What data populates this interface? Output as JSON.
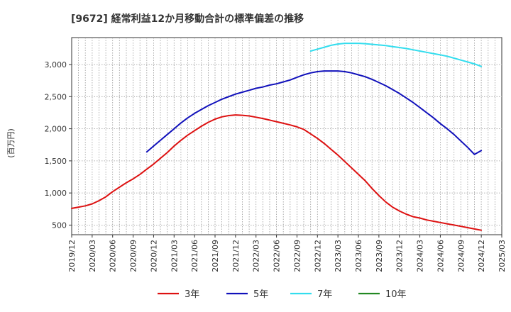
{
  "chart_data": {
    "type": "line",
    "title": "[9672]  経常利益12か月移動合計の標準偏差の推移",
    "ylabel": "(百万円)",
    "ylim": [
      350,
      3420
    ],
    "yticks": [
      500,
      1000,
      1500,
      2000,
      2500,
      3000
    ],
    "ytick_labels": [
      "500",
      "1,000",
      "1,500",
      "2,000",
      "2,500",
      "3,000"
    ],
    "xlim": [
      "2019/12",
      "2025/03"
    ],
    "xticks": [
      "2019/12",
      "2020/03",
      "2020/06",
      "2020/09",
      "2020/12",
      "2021/03",
      "2021/06",
      "2021/09",
      "2021/12",
      "2022/03",
      "2022/06",
      "2022/09",
      "2022/12",
      "2023/03",
      "2023/06",
      "2023/09",
      "2023/12",
      "2024/03",
      "2024/06",
      "2024/09",
      "2024/12",
      "2025/03"
    ],
    "grid": true,
    "legend_position": "bottom",
    "series": [
      {
        "name": "3年",
        "color": "#dd1111",
        "x": [
          "2019/12",
          "2020/01",
          "2020/02",
          "2020/03",
          "2020/04",
          "2020/05",
          "2020/06",
          "2020/07",
          "2020/08",
          "2020/09",
          "2020/10",
          "2020/11",
          "2020/12",
          "2021/01",
          "2021/02",
          "2021/03",
          "2021/04",
          "2021/05",
          "2021/06",
          "2021/07",
          "2021/08",
          "2021/09",
          "2021/10",
          "2021/11",
          "2021/12",
          "2022/01",
          "2022/02",
          "2022/03",
          "2022/04",
          "2022/05",
          "2022/06",
          "2022/07",
          "2022/08",
          "2022/09",
          "2022/10",
          "2022/11",
          "2022/12",
          "2023/01",
          "2023/02",
          "2023/03",
          "2023/04",
          "2023/05",
          "2023/06",
          "2023/07",
          "2023/08",
          "2023/09",
          "2023/10",
          "2023/11",
          "2023/12",
          "2024/01",
          "2024/02",
          "2024/03",
          "2024/04",
          "2024/05",
          "2024/06",
          "2024/07",
          "2024/08",
          "2024/09",
          "2024/10",
          "2024/11",
          "2024/12"
        ],
        "values": [
          760,
          780,
          800,
          830,
          880,
          940,
          1020,
          1090,
          1160,
          1220,
          1290,
          1370,
          1450,
          1540,
          1630,
          1730,
          1820,
          1900,
          1970,
          2040,
          2100,
          2150,
          2185,
          2205,
          2215,
          2210,
          2200,
          2180,
          2160,
          2135,
          2110,
          2085,
          2060,
          2030,
          1990,
          1920,
          1850,
          1770,
          1680,
          1590,
          1490,
          1390,
          1290,
          1190,
          1070,
          960,
          860,
          780,
          720,
          670,
          630,
          610,
          580,
          560,
          540,
          520,
          500,
          480,
          460,
          440,
          420
        ]
      },
      {
        "name": "5年",
        "color": "#1111bb",
        "x": [
          "2020/11",
          "2020/12",
          "2021/01",
          "2021/02",
          "2021/03",
          "2021/04",
          "2021/05",
          "2021/06",
          "2021/07",
          "2021/08",
          "2021/09",
          "2021/10",
          "2021/11",
          "2021/12",
          "2022/01",
          "2022/02",
          "2022/03",
          "2022/04",
          "2022/05",
          "2022/06",
          "2022/07",
          "2022/08",
          "2022/09",
          "2022/10",
          "2022/11",
          "2022/12",
          "2023/01",
          "2023/02",
          "2023/03",
          "2023/04",
          "2023/05",
          "2023/06",
          "2023/07",
          "2023/08",
          "2023/09",
          "2023/10",
          "2023/11",
          "2023/12",
          "2024/01",
          "2024/02",
          "2024/03",
          "2024/04",
          "2024/05",
          "2024/06",
          "2024/07",
          "2024/08",
          "2024/09",
          "2024/10",
          "2024/11",
          "2024/12"
        ],
        "values": [
          1640,
          1730,
          1820,
          1910,
          2000,
          2090,
          2170,
          2240,
          2300,
          2360,
          2410,
          2460,
          2500,
          2540,
          2570,
          2600,
          2630,
          2650,
          2680,
          2700,
          2730,
          2760,
          2800,
          2840,
          2870,
          2890,
          2900,
          2900,
          2900,
          2890,
          2870,
          2840,
          2810,
          2770,
          2720,
          2670,
          2610,
          2550,
          2480,
          2410,
          2330,
          2250,
          2170,
          2080,
          2000,
          1910,
          1810,
          1710,
          1600,
          1660
        ]
      },
      {
        "name": "7年",
        "color": "#33ddee",
        "x": [
          "2022/11",
          "2022/12",
          "2023/01",
          "2023/02",
          "2023/03",
          "2023/04",
          "2023/05",
          "2023/06",
          "2023/07",
          "2023/08",
          "2023/09",
          "2023/10",
          "2023/11",
          "2023/12",
          "2024/01",
          "2024/02",
          "2024/03",
          "2024/04",
          "2024/05",
          "2024/06",
          "2024/07",
          "2024/08",
          "2024/09",
          "2024/10",
          "2024/11",
          "2024/12"
        ],
        "values": [
          3210,
          3240,
          3270,
          3300,
          3320,
          3330,
          3330,
          3330,
          3325,
          3315,
          3305,
          3295,
          3280,
          3265,
          3250,
          3230,
          3210,
          3190,
          3170,
          3150,
          3130,
          3100,
          3070,
          3040,
          3010,
          2970
        ]
      },
      {
        "name": "10年",
        "color": "#228822",
        "x": [],
        "values": []
      }
    ]
  }
}
